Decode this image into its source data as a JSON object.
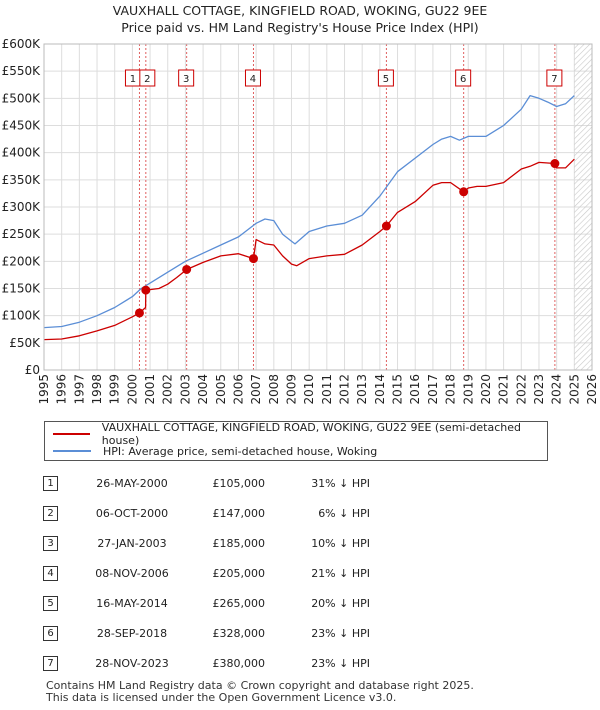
{
  "chart_data": {
    "type": "line",
    "title": "VAUXHALL COTTAGE, KINGFIELD ROAD, WOKING, GU22 9EE",
    "subtitle": "Price paid vs. HM Land Registry's House Price Index (HPI)",
    "xlim": [
      1995,
      2026
    ],
    "ylim": [
      0,
      600000
    ],
    "x_ticks": [
      "1995",
      "1996",
      "1997",
      "1998",
      "1999",
      "2000",
      "2001",
      "2002",
      "2003",
      "2004",
      "2005",
      "2006",
      "2007",
      "2008",
      "2009",
      "2010",
      "2011",
      "2012",
      "2013",
      "2014",
      "2015",
      "2016",
      "2017",
      "2018",
      "2019",
      "2020",
      "2021",
      "2022",
      "2023",
      "2024",
      "2025",
      "2026"
    ],
    "y_ticks": [
      "£0",
      "£50K",
      "£100K",
      "£150K",
      "£200K",
      "£250K",
      "£300K",
      "£350K",
      "£400K",
      "£450K",
      "£500K",
      "£550K",
      "£600K"
    ],
    "grid": true,
    "future_hatch_from": 2025.0,
    "legend_position": "below",
    "series": [
      {
        "name": "VAUXHALL COTTAGE, KINGFIELD ROAD, WOKING, GU22 9EE (semi-detached house)",
        "color": "#cc0000",
        "x": [
          1995.0,
          1996.0,
          1997.0,
          1998.0,
          1999.0,
          2000.0,
          2000.4,
          2000.75,
          2000.76,
          2001.5,
          2002.0,
          2002.5,
          2003.07,
          2004.0,
          2005.0,
          2006.0,
          2006.85,
          2007.0,
          2007.5,
          2008.0,
          2008.5,
          2009.0,
          2009.3,
          2010.0,
          2011.0,
          2012.0,
          2013.0,
          2014.0,
          2014.37,
          2015.0,
          2016.0,
          2017.0,
          2017.5,
          2018.0,
          2018.74,
          2019.0,
          2019.5,
          2020.0,
          2021.0,
          2022.0,
          2022.5,
          2023.0,
          2023.9,
          2024.0,
          2024.5,
          2025.0
        ],
        "values": [
          56000,
          57000,
          63000,
          72000,
          82000,
          98000,
          105000,
          115000,
          147000,
          150000,
          158000,
          170000,
          185000,
          198000,
          210000,
          214000,
          205000,
          240000,
          232000,
          230000,
          210000,
          195000,
          192000,
          205000,
          210000,
          213000,
          230000,
          255000,
          265000,
          290000,
          310000,
          340000,
          345000,
          345000,
          328000,
          335000,
          338000,
          338000,
          345000,
          370000,
          375000,
          382000,
          380000,
          372000,
          372000,
          388000
        ]
      },
      {
        "name": "HPI: Average price, semi-detached house, Woking",
        "color": "#5b8ed6",
        "x": [
          1995.0,
          1996.0,
          1997.0,
          1998.0,
          1999.0,
          2000.0,
          2000.5,
          2001.0,
          2002.0,
          2003.0,
          2004.0,
          2005.0,
          2006.0,
          2007.0,
          2007.5,
          2008.0,
          2008.5,
          2009.0,
          2009.2,
          2010.0,
          2011.0,
          2012.0,
          2013.0,
          2014.0,
          2015.0,
          2016.0,
          2017.0,
          2017.5,
          2018.0,
          2018.5,
          2019.0,
          2020.0,
          2021.0,
          2022.0,
          2022.5,
          2023.0,
          2023.5,
          2024.0,
          2024.5,
          2025.0
        ],
        "values": [
          78000,
          80000,
          88000,
          100000,
          115000,
          135000,
          150000,
          160000,
          180000,
          200000,
          215000,
          230000,
          245000,
          270000,
          278000,
          275000,
          250000,
          237000,
          232000,
          255000,
          265000,
          270000,
          285000,
          320000,
          365000,
          390000,
          415000,
          425000,
          430000,
          423000,
          430000,
          430000,
          450000,
          480000,
          505000,
          500000,
          493000,
          485000,
          490000,
          505000
        ]
      }
    ],
    "sales": [
      {
        "num": "1",
        "date": "26-MAY-2000",
        "price": "£105,000",
        "hpi": "31% ↓ HPI",
        "x": 2000.4,
        "y": 105000
      },
      {
        "num": "2",
        "date": "06-OCT-2000",
        "price": "£147,000",
        "hpi": "6% ↓ HPI",
        "x": 2000.76,
        "y": 147000
      },
      {
        "num": "3",
        "date": "27-JAN-2003",
        "price": "£185,000",
        "hpi": "10% ↓ HPI",
        "x": 2003.07,
        "y": 185000
      },
      {
        "num": "4",
        "date": "08-NOV-2006",
        "price": "£205,000",
        "hpi": "21% ↓ HPI",
        "x": 2006.85,
        "y": 205000
      },
      {
        "num": "5",
        "date": "16-MAY-2014",
        "price": "£265,000",
        "hpi": "20% ↓ HPI",
        "x": 2014.37,
        "y": 265000
      },
      {
        "num": "6",
        "date": "28-SEP-2018",
        "price": "£328,000",
        "hpi": "23% ↓ HPI",
        "x": 2018.74,
        "y": 328000
      },
      {
        "num": "7",
        "date": "28-NOV-2023",
        "price": "£380,000",
        "hpi": "23% ↓ HPI",
        "x": 2023.9,
        "y": 380000
      }
    ]
  },
  "footer": {
    "line1": "Contains HM Land Registry data © Crown copyright and database right 2025.",
    "line2": "This data is licensed under the Open Government Licence v3.0."
  }
}
